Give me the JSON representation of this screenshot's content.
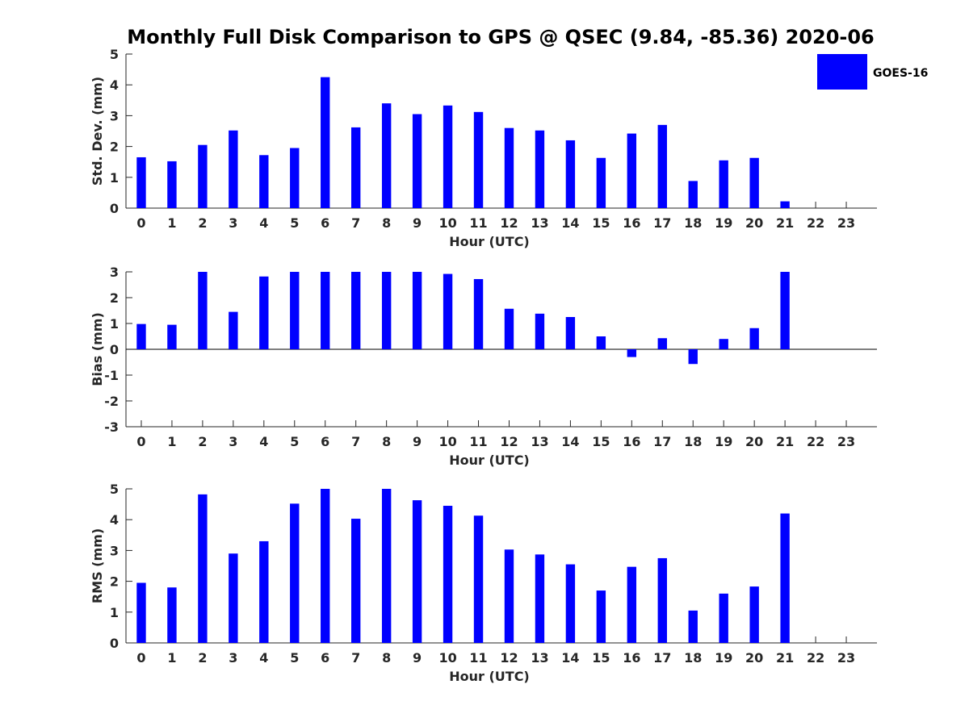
{
  "title": "Monthly Full Disk Comparison to GPS @ QSEC (9.84, -85.36) 2020-06",
  "legend": {
    "label": "GOES-16",
    "color": "#0000ff",
    "placement": "top-right"
  },
  "chart_data": [
    {
      "type": "bar",
      "xlabel": "Hour (UTC)",
      "ylabel": "Std. Dev. (mm)",
      "ylim": [
        0,
        5
      ],
      "yticks": [
        0,
        1,
        2,
        3,
        4,
        5
      ],
      "categories": [
        "0",
        "1",
        "2",
        "3",
        "4",
        "5",
        "6",
        "7",
        "8",
        "9",
        "10",
        "11",
        "12",
        "13",
        "14",
        "15",
        "16",
        "17",
        "18",
        "19",
        "20",
        "21",
        "22",
        "23"
      ],
      "series": [
        {
          "name": "GOES-16",
          "color": "#0000ff",
          "values": [
            1.65,
            1.52,
            2.05,
            2.52,
            1.72,
            1.95,
            4.25,
            2.62,
            3.4,
            3.05,
            3.33,
            3.12,
            2.6,
            2.52,
            2.2,
            1.63,
            2.42,
            2.7,
            0.88,
            1.55,
            1.63,
            0.22,
            null,
            null
          ]
        }
      ]
    },
    {
      "type": "bar",
      "xlabel": "Hour (UTC)",
      "ylabel": "Bias (mm)",
      "ylim": [
        -3,
        3
      ],
      "yticks": [
        -3,
        -2,
        -1,
        0,
        1,
        2,
        3
      ],
      "categories": [
        "0",
        "1",
        "2",
        "3",
        "4",
        "5",
        "6",
        "7",
        "8",
        "9",
        "10",
        "11",
        "12",
        "13",
        "14",
        "15",
        "16",
        "17",
        "18",
        "19",
        "20",
        "21",
        "22",
        "23"
      ],
      "series": [
        {
          "name": "GOES-16",
          "color": "#0000ff",
          "values": [
            0.98,
            0.95,
            3.0,
            1.45,
            2.82,
            3.0,
            3.0,
            3.0,
            3.0,
            3.0,
            2.92,
            2.72,
            1.57,
            1.38,
            1.25,
            0.5,
            -0.3,
            0.43,
            -0.57,
            0.4,
            0.82,
            3.0,
            null,
            null
          ]
        }
      ]
    },
    {
      "type": "bar",
      "xlabel": "Hour (UTC)",
      "ylabel": "RMS (mm)",
      "ylim": [
        0,
        5
      ],
      "yticks": [
        0,
        1,
        2,
        3,
        4,
        5
      ],
      "categories": [
        "0",
        "1",
        "2",
        "3",
        "4",
        "5",
        "6",
        "7",
        "8",
        "9",
        "10",
        "11",
        "12",
        "13",
        "14",
        "15",
        "16",
        "17",
        "18",
        "19",
        "20",
        "21",
        "22",
        "23"
      ],
      "series": [
        {
          "name": "GOES-16",
          "color": "#0000ff",
          "values": [
            1.95,
            1.8,
            4.82,
            2.9,
            3.3,
            4.52,
            5.0,
            4.03,
            5.0,
            4.63,
            4.45,
            4.13,
            3.03,
            2.87,
            2.55,
            1.7,
            2.47,
            2.75,
            1.05,
            1.6,
            1.83,
            4.2,
            null,
            null
          ]
        }
      ]
    }
  ]
}
